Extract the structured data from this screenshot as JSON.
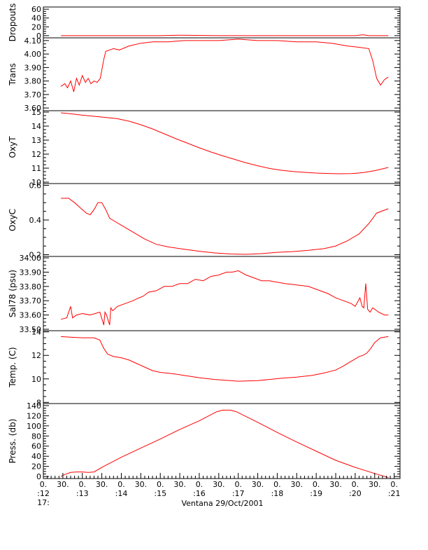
{
  "figure": {
    "footer_title": "Ventana 29/Oct/2001",
    "x_axis": {
      "labels_top": [
        "0.",
        "30.",
        "0.",
        "30.",
        "0.",
        "30.",
        "0.",
        "30.",
        "0.",
        "30.",
        "0.",
        "30.",
        "0.",
        "30.",
        "0.",
        "30.",
        "0.",
        "30.",
        "0."
      ],
      "labels_bottom": [
        ":12",
        ":13",
        ":14",
        ":15",
        ":16",
        ":17",
        ":18",
        ":19",
        ":20",
        ":21"
      ],
      "hour_label": "17:"
    },
    "line_color": "#ff0000"
  },
  "chart_data": [
    {
      "type": "line",
      "ylabel": "Dropouts",
      "ylim": [
        -5,
        65
      ],
      "yticks": [
        0,
        20,
        40,
        60
      ],
      "ytick_labels": [
        "0",
        "20",
        "40",
        "60"
      ],
      "series": [
        {
          "x": [
            12.45,
            13.5,
            14.5,
            15.0,
            15.5,
            16.5,
            17.5,
            18.5,
            19.5,
            20.0,
            20.2,
            20.35,
            20.85
          ],
          "y": [
            0,
            0,
            0,
            0,
            1,
            0,
            0,
            0,
            0,
            0,
            2,
            0,
            0
          ]
        }
      ]
    },
    {
      "type": "line",
      "ylabel": "Trans",
      "ylim": [
        3.58,
        4.12
      ],
      "yticks": [
        3.6,
        3.7,
        3.8,
        3.9,
        4.0,
        4.1
      ],
      "ytick_labels": [
        "3.60",
        "3.70",
        "3.80",
        "3.90",
        "4.00",
        "4.10"
      ],
      "series": [
        {
          "x": [
            12.45,
            12.55,
            12.62,
            12.7,
            12.78,
            12.85,
            12.92,
            13.0,
            13.08,
            13.15,
            13.22,
            13.3,
            13.38,
            13.46,
            13.55,
            13.6,
            13.7,
            13.8,
            13.95,
            14.2,
            14.5,
            14.8,
            15.2,
            15.6,
            16.0,
            16.5,
            17.0,
            17.5,
            18.0,
            18.5,
            19.0,
            19.4,
            19.8,
            20.1,
            20.35,
            20.45,
            20.55,
            20.65,
            20.75,
            20.85
          ],
          "y": [
            3.76,
            3.78,
            3.75,
            3.8,
            3.72,
            3.82,
            3.77,
            3.84,
            3.79,
            3.82,
            3.78,
            3.8,
            3.79,
            3.82,
            3.96,
            4.02,
            4.03,
            4.04,
            4.03,
            4.06,
            4.08,
            4.09,
            4.09,
            4.1,
            4.1,
            4.1,
            4.11,
            4.1,
            4.1,
            4.09,
            4.09,
            4.08,
            4.06,
            4.05,
            4.04,
            3.95,
            3.82,
            3.77,
            3.81,
            3.83
          ]
        }
      ]
    },
    {
      "type": "line",
      "ylabel": "OxyT",
      "ylim": [
        9.9,
        15.1
      ],
      "yticks": [
        10,
        11,
        12,
        13,
        14,
        15
      ],
      "ytick_labels": [
        "10",
        "11",
        "12",
        "13",
        "14",
        "15"
      ],
      "series": [
        {
          "x": [
            12.45,
            12.7,
            13.0,
            13.3,
            13.6,
            13.9,
            14.2,
            14.5,
            14.8,
            15.1,
            15.4,
            15.7,
            16.0,
            16.3,
            16.6,
            16.9,
            17.2,
            17.5,
            17.8,
            18.1,
            18.4,
            18.7,
            19.0,
            19.3,
            19.6,
            19.9,
            20.2,
            20.5,
            20.85
          ],
          "y": [
            14.95,
            14.88,
            14.78,
            14.7,
            14.62,
            14.53,
            14.35,
            14.1,
            13.8,
            13.45,
            13.1,
            12.78,
            12.45,
            12.15,
            11.88,
            11.63,
            11.38,
            11.17,
            10.98,
            10.85,
            10.76,
            10.7,
            10.65,
            10.62,
            10.6,
            10.61,
            10.68,
            10.82,
            11.05
          ]
        }
      ]
    },
    {
      "type": "line",
      "ylabel": "OxyC",
      "ylim": [
        0.19,
        0.61
      ],
      "yticks": [
        0.2,
        0.4,
        0.6
      ],
      "ytick_labels": [
        "0.2",
        "0.4",
        "0.6"
      ],
      "series": [
        {
          "x": [
            12.45,
            12.65,
            12.8,
            12.95,
            13.1,
            13.2,
            13.3,
            13.4,
            13.5,
            13.6,
            13.7,
            13.85,
            14.0,
            14.3,
            14.6,
            14.9,
            15.2,
            15.6,
            16.0,
            16.4,
            16.8,
            17.2,
            17.6,
            18.0,
            18.4,
            18.8,
            19.2,
            19.5,
            19.8,
            20.1,
            20.35,
            20.55,
            20.85
          ],
          "y": [
            0.525,
            0.525,
            0.5,
            0.47,
            0.44,
            0.43,
            0.46,
            0.5,
            0.5,
            0.46,
            0.41,
            0.39,
            0.37,
            0.33,
            0.29,
            0.26,
            0.245,
            0.232,
            0.22,
            0.21,
            0.204,
            0.202,
            0.206,
            0.214,
            0.218,
            0.225,
            0.235,
            0.25,
            0.28,
            0.32,
            0.38,
            0.44,
            0.465
          ]
        }
      ]
    },
    {
      "type": "line",
      "ylabel": "Sal78 (psu)",
      "ylim": [
        33.49,
        34.01
      ],
      "yticks": [
        33.5,
        33.6,
        33.7,
        33.8,
        33.9,
        34.0
      ],
      "ytick_labels": [
        "33.50",
        "33.60",
        "33.70",
        "33.80",
        "33.90",
        "34.00"
      ],
      "series": [
        {
          "x": [
            12.45,
            12.6,
            12.7,
            12.75,
            12.85,
            13.0,
            13.2,
            13.45,
            13.55,
            13.58,
            13.62,
            13.7,
            13.73,
            13.78,
            13.9,
            14.1,
            14.3,
            14.45,
            14.55,
            14.7,
            14.9,
            15.1,
            15.3,
            15.5,
            15.7,
            15.9,
            16.1,
            16.3,
            16.5,
            16.7,
            16.85,
            17.0,
            17.2,
            17.4,
            17.6,
            17.8,
            18.0,
            18.2,
            18.5,
            18.8,
            19.1,
            19.3,
            19.5,
            19.7,
            19.9,
            20.0,
            20.12,
            20.18,
            20.22,
            20.27,
            20.32,
            20.38,
            20.45,
            20.6,
            20.75,
            20.85
          ],
          "y": [
            33.57,
            33.58,
            33.66,
            33.58,
            33.6,
            33.61,
            33.6,
            33.62,
            33.53,
            33.62,
            33.6,
            33.53,
            33.65,
            33.63,
            33.66,
            33.68,
            33.7,
            33.72,
            33.73,
            33.76,
            33.77,
            33.8,
            33.8,
            33.82,
            33.82,
            33.85,
            33.84,
            33.87,
            33.88,
            33.9,
            33.9,
            33.91,
            33.88,
            33.86,
            33.84,
            33.84,
            33.83,
            33.82,
            33.81,
            33.8,
            33.77,
            33.75,
            33.72,
            33.7,
            33.68,
            33.66,
            33.72,
            33.66,
            33.65,
            33.82,
            33.64,
            33.62,
            33.65,
            33.62,
            33.6,
            33.6
          ]
        }
      ]
    },
    {
      "type": "line",
      "ylabel": "Temp. (C)",
      "ylim": [
        7.9,
        14.1
      ],
      "yticks": [
        8,
        10,
        12,
        14
      ],
      "ytick_labels": [
        "8",
        "10",
        "12",
        "14"
      ],
      "series": [
        {
          "x": [
            12.45,
            12.7,
            13.0,
            13.3,
            13.45,
            13.55,
            13.65,
            13.8,
            14.0,
            14.2,
            14.4,
            14.6,
            14.8,
            15.0,
            15.3,
            15.6,
            16.0,
            16.4,
            16.8,
            17.0,
            17.2,
            17.5,
            17.8,
            18.1,
            18.5,
            18.9,
            19.2,
            19.5,
            19.7,
            19.9,
            20.0,
            20.1,
            20.2,
            20.3,
            20.4,
            20.5,
            20.65,
            20.85
          ],
          "y": [
            13.6,
            13.55,
            13.5,
            13.5,
            13.3,
            12.6,
            12.1,
            11.9,
            11.8,
            11.6,
            11.3,
            11.0,
            10.7,
            10.55,
            10.45,
            10.3,
            10.1,
            9.95,
            9.85,
            9.8,
            9.82,
            9.85,
            9.95,
            10.05,
            10.15,
            10.3,
            10.5,
            10.75,
            11.1,
            11.5,
            11.7,
            11.9,
            12.0,
            12.2,
            12.6,
            13.1,
            13.5,
            13.6
          ]
        }
      ]
    },
    {
      "type": "line",
      "ylabel": "Press. (db)",
      "ylim": [
        -4,
        144
      ],
      "yticks": [
        0,
        20,
        40,
        60,
        80,
        100,
        120,
        140
      ],
      "ytick_labels": [
        "0",
        "20",
        "40",
        "60",
        "80",
        "100",
        "120",
        "140"
      ],
      "series": [
        {
          "x": [
            12.45,
            12.55,
            12.7,
            12.85,
            13.0,
            13.15,
            13.3,
            13.5,
            14.0,
            14.5,
            15.0,
            15.5,
            16.0,
            16.45,
            16.6,
            16.8,
            16.95,
            17.5,
            18.0,
            18.5,
            19.0,
            19.5,
            20.0,
            20.5,
            20.85
          ],
          "y": [
            0,
            4,
            8,
            9,
            9,
            8,
            9,
            18,
            38,
            56,
            74,
            93,
            110,
            128,
            131,
            131,
            128,
            107,
            87,
            68,
            50,
            32,
            18,
            6,
            -2
          ]
        }
      ]
    }
  ]
}
